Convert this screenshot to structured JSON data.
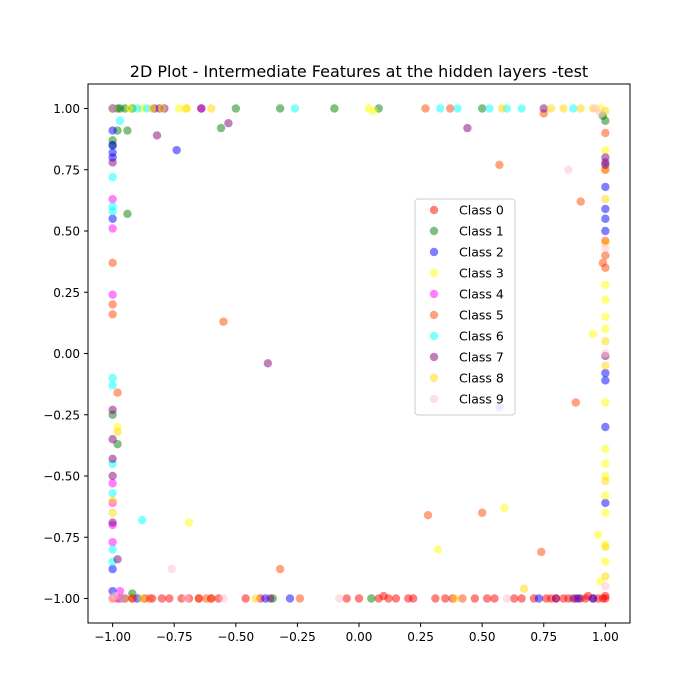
{
  "chart_data": {
    "type": "scatter",
    "title": "2D Plot - Intermediate Features at the hidden layers -test",
    "xlabel": "",
    "ylabel": "",
    "xlim": [
      -1.1,
      1.1
    ],
    "ylim": [
      -1.1,
      1.1
    ],
    "xticks": [
      -1.0,
      -0.75,
      -0.5,
      -0.25,
      0.0,
      0.25,
      0.5,
      0.75,
      1.0
    ],
    "yticks": [
      -1.0,
      -0.75,
      -0.5,
      -0.25,
      0.0,
      0.25,
      0.5,
      0.75,
      1.0
    ],
    "xtick_labels": [
      "−1.00",
      "−0.75",
      "−0.50",
      "−0.25",
      "0.00",
      "0.25",
      "0.50",
      "0.75",
      "1.00"
    ],
    "ytick_labels": [
      "−1.00",
      "−0.75",
      "−0.50",
      "−0.25",
      "0.00",
      "0.25",
      "0.50",
      "0.75",
      "1.00"
    ],
    "grid": false,
    "legend_position": "center-right",
    "marker_alpha": 0.5,
    "series": [
      {
        "name": "Class 0",
        "color": "#ff0000",
        "points": [
          [
            -1.0,
            -1.0
          ],
          [
            -0.98,
            -1.0
          ],
          [
            -0.95,
            -1.0
          ],
          [
            -0.92,
            -1.0
          ],
          [
            -0.87,
            -1.0
          ],
          [
            -0.84,
            -1.0
          ],
          [
            -0.8,
            -1.0
          ],
          [
            -0.77,
            -1.0
          ],
          [
            -0.72,
            -1.0
          ],
          [
            -0.69,
            -1.0
          ],
          [
            -0.65,
            -1.0
          ],
          [
            -0.6,
            -1.0
          ],
          [
            -0.57,
            -1.0
          ],
          [
            -0.46,
            -1.0
          ],
          [
            -0.4,
            -1.0
          ],
          [
            -0.05,
            -1.0
          ],
          [
            0.0,
            -1.0
          ],
          [
            0.08,
            -1.0
          ],
          [
            0.1,
            -0.99
          ],
          [
            0.12,
            -1.0
          ],
          [
            0.15,
            -1.0
          ],
          [
            0.2,
            -1.0
          ],
          [
            0.22,
            -1.0
          ],
          [
            0.31,
            -1.0
          ],
          [
            0.35,
            -1.0
          ],
          [
            0.38,
            -1.0
          ],
          [
            0.47,
            -1.0
          ],
          [
            0.52,
            -1.0
          ],
          [
            0.55,
            -1.0
          ],
          [
            0.63,
            -1.0
          ],
          [
            0.66,
            -1.0
          ],
          [
            0.71,
            -1.0
          ],
          [
            0.76,
            -1.0
          ],
          [
            0.78,
            -1.0
          ],
          [
            0.8,
            -1.0
          ],
          [
            0.83,
            -1.0
          ],
          [
            0.85,
            -1.0
          ],
          [
            0.88,
            -1.0
          ],
          [
            0.9,
            -1.0
          ],
          [
            0.92,
            -1.0
          ],
          [
            0.95,
            -1.0
          ],
          [
            0.97,
            -1.0
          ],
          [
            0.99,
            -1.0
          ],
          [
            1.0,
            -1.0
          ],
          [
            1.0,
            -0.99
          ],
          [
            0.93,
            -0.99
          ]
        ]
      },
      {
        "name": "Class 1",
        "color": "#008000",
        "points": [
          [
            -1.0,
            1.0
          ],
          [
            -0.98,
            1.0
          ],
          [
            -0.97,
            1.0
          ],
          [
            -0.95,
            1.0
          ],
          [
            -0.92,
            1.0
          ],
          [
            -0.5,
            1.0
          ],
          [
            -0.32,
            1.0
          ],
          [
            -0.1,
            1.0
          ],
          [
            0.08,
            1.0
          ],
          [
            0.5,
            1.0
          ],
          [
            -0.56,
            0.92
          ],
          [
            -0.98,
            0.91
          ],
          [
            -0.94,
            0.91
          ],
          [
            -0.94,
            0.57
          ],
          [
            -1.0,
            0.87
          ],
          [
            -1.0,
            0.85
          ],
          [
            -1.0,
            -0.25
          ],
          [
            -0.98,
            -0.37
          ],
          [
            -0.96,
            -1.0
          ],
          [
            -0.92,
            -0.98
          ],
          [
            -0.35,
            -1.0
          ],
          [
            0.05,
            -1.0
          ],
          [
            1.0,
            0.95
          ],
          [
            0.99,
            0.97
          ]
        ]
      },
      {
        "name": "Class 2",
        "color": "#0000ff",
        "points": [
          [
            -1.0,
            0.91
          ],
          [
            -1.0,
            0.85
          ],
          [
            -1.0,
            0.82
          ],
          [
            -1.0,
            0.8
          ],
          [
            -1.0,
            0.55
          ],
          [
            -0.74,
            0.83
          ],
          [
            -1.0,
            -0.88
          ],
          [
            -1.0,
            -0.97
          ],
          [
            -0.9,
            -1.0
          ],
          [
            -0.38,
            -1.0
          ],
          [
            -0.28,
            -1.0
          ],
          [
            0.73,
            -1.0
          ],
          [
            0.89,
            -1.0
          ],
          [
            0.95,
            -1.0
          ],
          [
            1.0,
            0.59
          ],
          [
            1.0,
            0.55
          ],
          [
            1.0,
            0.5
          ],
          [
            1.0,
            0.68
          ],
          [
            1.0,
            -0.08
          ],
          [
            1.0,
            -0.11
          ],
          [
            1.0,
            -0.3
          ],
          [
            0.57,
            -0.22
          ],
          [
            1.0,
            -0.61
          ]
        ]
      },
      {
        "name": "Class 3",
        "color": "#ffff00",
        "points": [
          [
            -0.93,
            1.0
          ],
          [
            -0.88,
            1.0
          ],
          [
            -0.73,
            1.0
          ],
          [
            -0.7,
            1.0
          ],
          [
            0.04,
            1.0
          ],
          [
            0.06,
            0.99
          ],
          [
            0.98,
            1.0
          ],
          [
            1.0,
            0.83
          ],
          [
            1.0,
            0.75
          ],
          [
            1.0,
            0.45
          ],
          [
            1.0,
            0.28
          ],
          [
            1.0,
            0.22
          ],
          [
            1.0,
            0.15
          ],
          [
            1.0,
            0.1
          ],
          [
            1.0,
            -0.2
          ],
          [
            1.0,
            -0.39
          ],
          [
            1.0,
            -0.45
          ],
          [
            1.0,
            -0.5
          ],
          [
            1.0,
            -0.58
          ],
          [
            1.0,
            -0.65
          ],
          [
            1.0,
            -0.78
          ],
          [
            1.0,
            -0.85
          ],
          [
            0.98,
            -0.93
          ],
          [
            0.97,
            -0.74
          ],
          [
            0.95,
            0.08
          ],
          [
            0.32,
            -0.8
          ],
          [
            0.59,
            -0.63
          ],
          [
            -0.69,
            -0.69
          ],
          [
            -0.98,
            -0.3
          ]
        ]
      },
      {
        "name": "Class 4",
        "color": "#ff00ff",
        "points": [
          [
            -1.0,
            0.63
          ],
          [
            -1.0,
            0.51
          ],
          [
            -1.0,
            0.24
          ],
          [
            -1.0,
            -0.53
          ],
          [
            -1.0,
            -0.61
          ],
          [
            -1.0,
            -0.7
          ],
          [
            -1.0,
            -0.77
          ],
          [
            -0.97,
            -0.97
          ],
          [
            -0.97,
            -1.0
          ],
          [
            -0.64,
            1.0
          ]
        ]
      },
      {
        "name": "Class 5",
        "color": "#ff4500",
        "points": [
          [
            -1.0,
            0.37
          ],
          [
            -1.0,
            0.2
          ],
          [
            -1.0,
            0.16
          ],
          [
            -0.98,
            -0.16
          ],
          [
            -0.55,
            0.13
          ],
          [
            -0.32,
            -0.88
          ],
          [
            -0.92,
            -1.0
          ],
          [
            -0.85,
            -1.0
          ],
          [
            -0.6,
            -1.0
          ],
          [
            -0.24,
            -1.0
          ],
          [
            0.28,
            -0.66
          ],
          [
            0.5,
            -0.65
          ],
          [
            0.74,
            -0.81
          ],
          [
            0.88,
            -0.2
          ],
          [
            0.57,
            0.77
          ],
          [
            0.9,
            0.62
          ],
          [
            0.27,
            1.0
          ],
          [
            0.37,
            1.0
          ],
          [
            0.75,
            0.98
          ],
          [
            1.0,
            0.46
          ],
          [
            1.0,
            0.4
          ],
          [
            0.99,
            0.37
          ],
          [
            1.0,
            0.35
          ],
          [
            1.0,
            0.75
          ],
          [
            1.0,
            0.9
          ],
          [
            0.42,
            -1.0
          ],
          [
            -0.62,
            -1.0
          ],
          [
            -0.65,
            -1.0
          ]
        ]
      },
      {
        "name": "Class 6",
        "color": "#00ffff",
        "points": [
          [
            -1.0,
            0.72
          ],
          [
            -1.0,
            0.6
          ],
          [
            -1.0,
            0.58
          ],
          [
            -1.0,
            -0.1
          ],
          [
            -1.0,
            -0.13
          ],
          [
            -1.0,
            -0.45
          ],
          [
            -1.0,
            -0.57
          ],
          [
            -1.0,
            -0.8
          ],
          [
            -1.0,
            -0.85
          ],
          [
            -0.88,
            -0.68
          ],
          [
            -0.97,
            0.95
          ],
          [
            -0.9,
            1.0
          ],
          [
            -0.86,
            1.0
          ],
          [
            -0.26,
            1.0
          ],
          [
            0.33,
            1.0
          ],
          [
            0.4,
            1.0
          ],
          [
            0.53,
            1.0
          ],
          [
            0.6,
            1.0
          ],
          [
            0.66,
            1.0
          ],
          [
            0.87,
            1.0
          ]
        ]
      },
      {
        "name": "Class 7",
        "color": "#800080",
        "points": [
          [
            -1.0,
            1.0
          ],
          [
            -0.83,
            1.0
          ],
          [
            -0.81,
            1.0
          ],
          [
            -0.79,
            1.0
          ],
          [
            -0.64,
            1.0
          ],
          [
            -0.53,
            0.94
          ],
          [
            -0.82,
            0.89
          ],
          [
            -1.0,
            0.78
          ],
          [
            -1.0,
            -0.23
          ],
          [
            -1.0,
            -0.35
          ],
          [
            -1.0,
            -0.43
          ],
          [
            -1.0,
            -0.5
          ],
          [
            -1.0,
            -0.69
          ],
          [
            -0.98,
            -0.84
          ],
          [
            -0.37,
            -0.04
          ],
          [
            0.44,
            0.92
          ],
          [
            0.75,
            1.0
          ],
          [
            1.0,
            0.8
          ],
          [
            1.0,
            0.77
          ],
          [
            1.0,
            0.78
          ],
          [
            -0.36,
            -1.0
          ],
          [
            0.8,
            -1.0
          ],
          [
            0.87,
            -1.0
          ],
          [
            1.0,
            -0.01
          ]
        ]
      },
      {
        "name": "Class 8",
        "color": "#ffd700",
        "points": [
          [
            -0.84,
            1.0
          ],
          [
            -0.8,
            1.0
          ],
          [
            -0.7,
            1.0
          ],
          [
            -0.6,
            1.0
          ],
          [
            0.58,
            1.0
          ],
          [
            0.78,
            1.0
          ],
          [
            0.83,
            1.0
          ],
          [
            0.9,
            1.0
          ],
          [
            0.95,
            1.0
          ],
          [
            1.0,
            0.99
          ],
          [
            1.0,
            0.63
          ],
          [
            1.0,
            0.05
          ],
          [
            1.0,
            -0.05
          ],
          [
            1.0,
            -0.52
          ],
          [
            1.0,
            -0.79
          ],
          [
            1.0,
            -0.91
          ],
          [
            0.67,
            -0.96
          ],
          [
            0.39,
            -1.0
          ],
          [
            -0.42,
            -1.0
          ],
          [
            -0.88,
            -1.0
          ],
          [
            -0.98,
            -0.32
          ],
          [
            -1.0,
            -0.6
          ],
          [
            -1.0,
            -0.65
          ]
        ]
      },
      {
        "name": "Class 9",
        "color": "#ffc0cb",
        "points": [
          [
            -1.0,
            1.0
          ],
          [
            -1.0,
            -1.0
          ],
          [
            -0.99,
            -0.99
          ],
          [
            -0.96,
            -1.0
          ],
          [
            -0.76,
            -0.88
          ],
          [
            -0.7,
            -1.0
          ],
          [
            -0.55,
            -1.0
          ],
          [
            -0.08,
            -1.0
          ],
          [
            0.6,
            -1.0
          ],
          [
            0.85,
            0.75
          ],
          [
            0.96,
            1.0
          ],
          [
            0.98,
            0.98
          ],
          [
            1.0,
            0.43
          ],
          [
            1.0,
            -0.95
          ],
          [
            1.0,
            0.0
          ]
        ]
      }
    ]
  }
}
